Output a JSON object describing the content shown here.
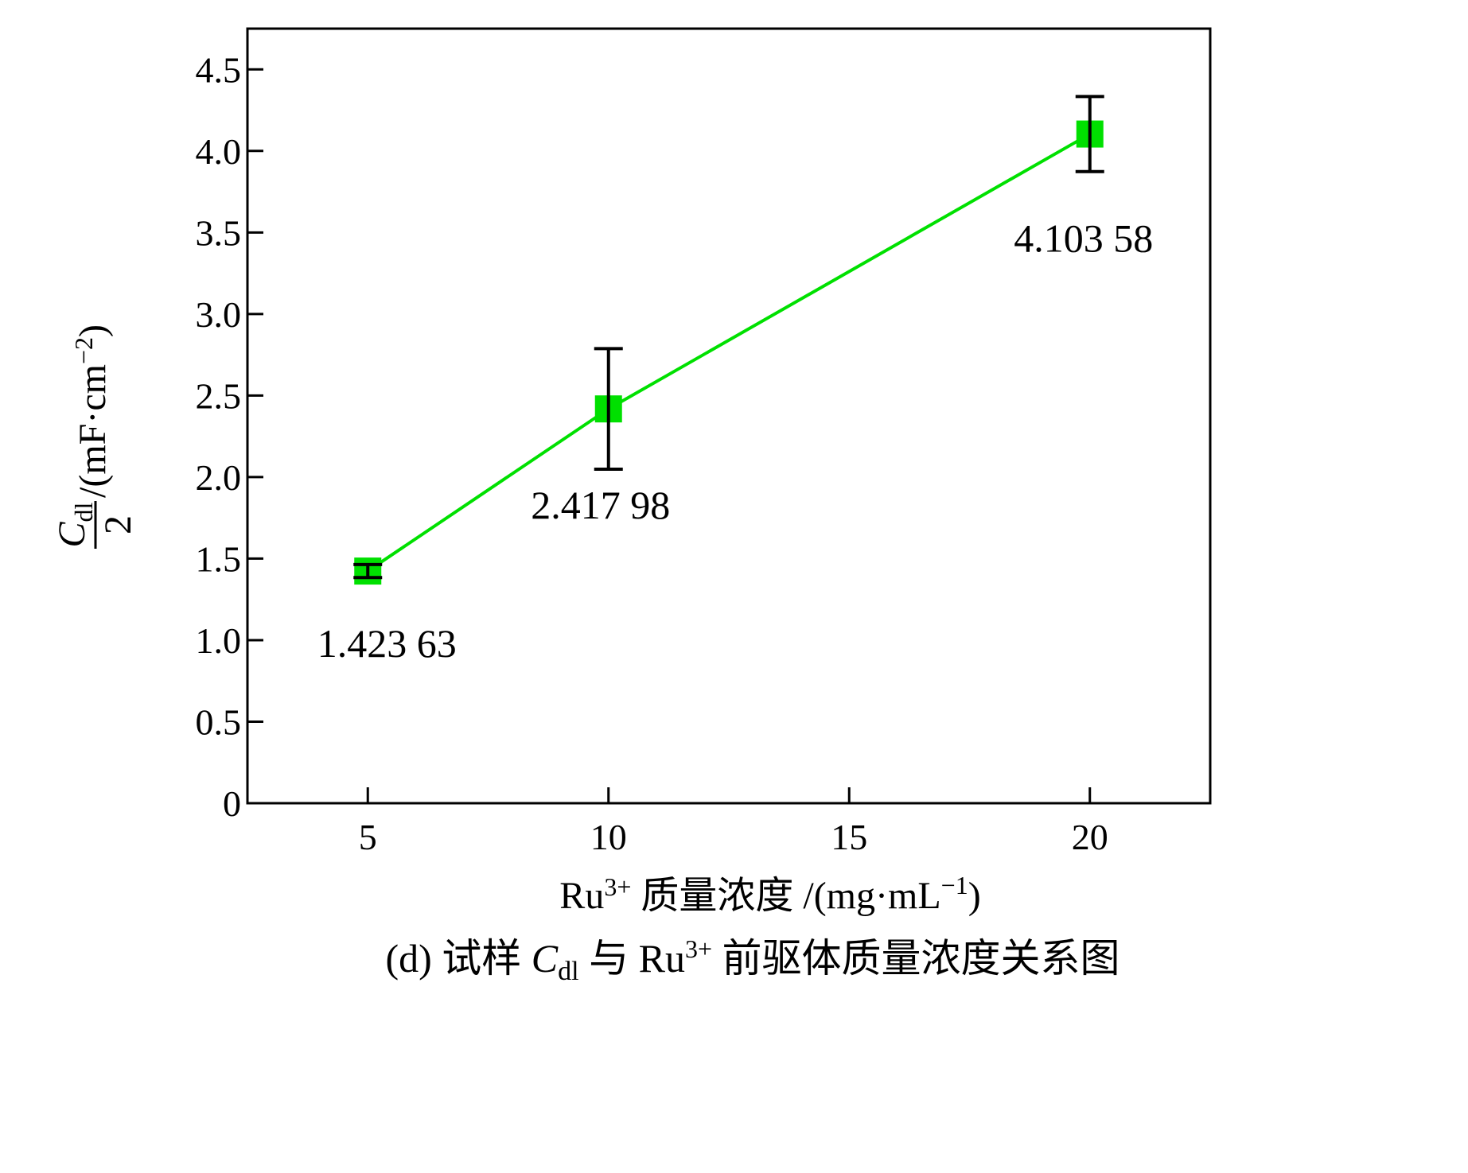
{
  "chart_data": {
    "type": "line",
    "x": [
      5,
      10,
      20
    ],
    "series": [
      {
        "values": [
          1.42363,
          2.41798,
          4.10358
        ],
        "error": [
          0.04,
          0.37,
          0.23
        ],
        "color": "#00e000",
        "marker": "square"
      }
    ],
    "data_labels": [
      "1.423 63",
      "2.417 98",
      "4.103 58"
    ],
    "xlim": [
      2.5,
      22.5
    ],
    "ylim": [
      0,
      4.75
    ],
    "x_ticks": [
      5,
      10,
      15,
      20
    ],
    "x_tick_labels": [
      "5",
      "10",
      "15",
      "20"
    ],
    "y_ticks": [
      0,
      0.5,
      1.0,
      1.5,
      2.0,
      2.5,
      3.0,
      3.5,
      4.0,
      4.5
    ],
    "y_tick_labels": [
      "0",
      "0.5",
      "1.0",
      "1.5",
      "2.0",
      "2.5",
      "3.0",
      "3.5",
      "4.0",
      "4.5"
    ],
    "grid": false,
    "xlabel": {
      "base": "Ru",
      "sup": "3+",
      "text": " 质量浓度 /(mg·mL",
      "unit_sup": "−1",
      "close": ")"
    },
    "ylabel": {
      "numerator": "C",
      "numerator_sub": "dl",
      "denominator": "2",
      "unit": "/(mF·cm",
      "unit_sup": "−2",
      "close": ")"
    },
    "caption": {
      "prefix": "(d) 试样 ",
      "c": "C",
      "c_sub": "dl",
      "middle": " 与 Ru",
      "sup": "3+",
      "suffix": " 前驱体质量浓度关系图"
    },
    "error_bar_color": "#000000"
  }
}
